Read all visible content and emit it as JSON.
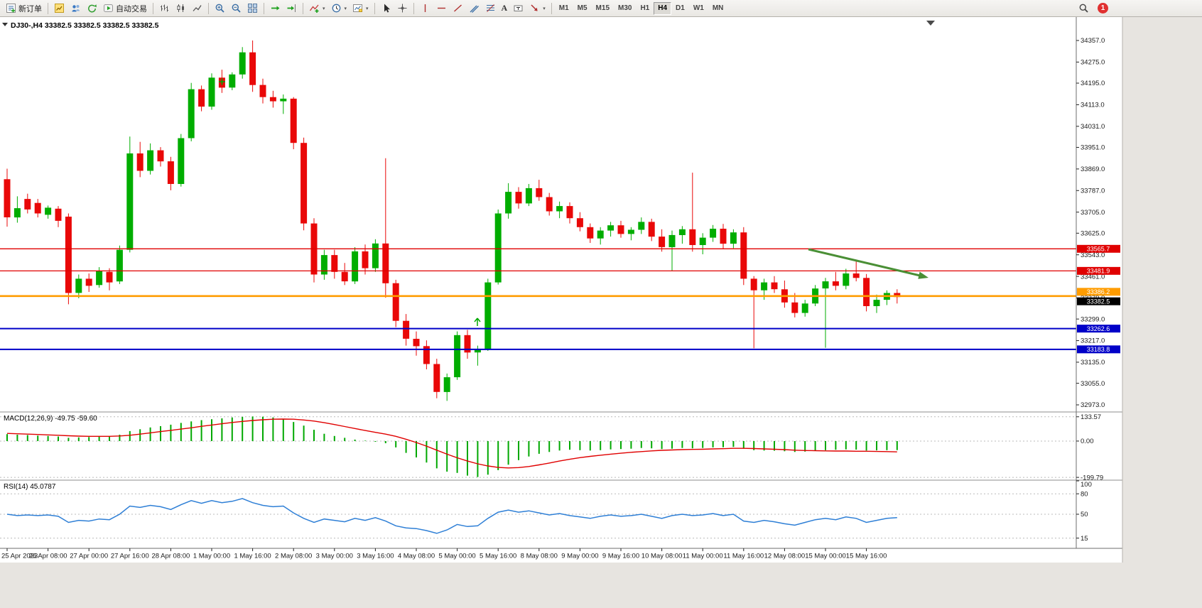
{
  "toolbar": {
    "new_order_label": "新订单",
    "auto_trading_label": "自动交易",
    "text_tool_label": "A",
    "timeframes": [
      "M1",
      "M5",
      "M15",
      "M30",
      "H1",
      "H4",
      "D1",
      "W1",
      "MN"
    ],
    "active_timeframe": "H4",
    "notification_count": "1"
  },
  "chart": {
    "title": "DJ30-,H4 33382.5 33382.5 33382.5 33382.5"
  },
  "chart_data": {
    "type": "candlestick",
    "symbol": "DJ30-",
    "timeframe": "H4",
    "current_ohlc": {
      "open": 33382.5,
      "high": 33382.5,
      "low": 33382.5,
      "close": 33382.5
    },
    "colors": {
      "bull": "#00ad00",
      "bear": "#e90808",
      "background": "#ffffff"
    },
    "price_axis": {
      "min": 32946,
      "max": 34446
    },
    "y_axis_labels": [
      "34357.0",
      "34275.0",
      "34195.0",
      "34113.0",
      "34031.0",
      "33951.0",
      "33869.0",
      "33787.0",
      "33705.0",
      "33625.0",
      "33543.0",
      "33461.0",
      "33379.0",
      "33299.0",
      "33217.0",
      "33135.0",
      "33055.0",
      "32973.0"
    ],
    "x_axis_labels": [
      "25 Apr 2023",
      "26 Apr 08:00",
      "27 Apr 00:00",
      "27 Apr 16:00",
      "28 Apr 08:00",
      "1 May 00:00",
      "1 May 16:00",
      "2 May 08:00",
      "3 May 00:00",
      "3 May 16:00",
      "4 May 08:00",
      "5 May 00:00",
      "5 May 16:00",
      "8 May 08:00",
      "9 May 00:00",
      "9 May 16:00",
      "10 May 08:00",
      "11 May 00:00",
      "11 May 16:00",
      "12 May 08:00",
      "15 May 00:00",
      "15 May 16:00"
    ],
    "bars_per_label": 4,
    "candles": [
      [
        33830,
        33870,
        33650,
        33685
      ],
      [
        33685,
        33765,
        33665,
        33720
      ],
      [
        33755,
        33775,
        33700,
        33715
      ],
      [
        33740,
        33755,
        33685,
        33700
      ],
      [
        33695,
        33730,
        33680,
        33722
      ],
      [
        33718,
        33728,
        33648,
        33672
      ],
      [
        33688,
        33700,
        33355,
        33398
      ],
      [
        33398,
        33468,
        33378,
        33452
      ],
      [
        33452,
        33472,
        33402,
        33425
      ],
      [
        33428,
        33496,
        33418,
        33482
      ],
      [
        33478,
        33492,
        33408,
        33438
      ],
      [
        33442,
        33578,
        33432,
        33562
      ],
      [
        33562,
        33992,
        33552,
        33928
      ],
      [
        33928,
        33972,
        33838,
        33862
      ],
      [
        33862,
        33966,
        33848,
        33940
      ],
      [
        33940,
        33952,
        33878,
        33898
      ],
      [
        33898,
        33915,
        33788,
        33812
      ],
      [
        33812,
        34002,
        33802,
        33986
      ],
      [
        33986,
        34196,
        33974,
        34172
      ],
      [
        34172,
        34186,
        34088,
        34106
      ],
      [
        34106,
        34232,
        34094,
        34216
      ],
      [
        34216,
        34246,
        34158,
        34178
      ],
      [
        34178,
        34236,
        34168,
        34228
      ],
      [
        34228,
        34332,
        34212,
        34312
      ],
      [
        34312,
        34357,
        34162,
        34188
      ],
      [
        34188,
        34212,
        34118,
        34142
      ],
      [
        34142,
        34166,
        34102,
        34126
      ],
      [
        34126,
        34152,
        34078,
        34136
      ],
      [
        34136,
        34142,
        33944,
        33968
      ],
      [
        33968,
        33988,
        33636,
        33662
      ],
      [
        33662,
        33682,
        33438,
        33468
      ],
      [
        33468,
        33562,
        33448,
        33542
      ],
      [
        33542,
        33562,
        33452,
        33478
      ],
      [
        33478,
        33512,
        33428,
        33442
      ],
      [
        33442,
        33572,
        33432,
        33556
      ],
      [
        33556,
        33582,
        33468,
        33492
      ],
      [
        33492,
        33602,
        33478,
        33586
      ],
      [
        33586,
        33910,
        33380,
        33435
      ],
      [
        33435,
        33448,
        33268,
        33292
      ],
      [
        33292,
        33318,
        33198,
        33224
      ],
      [
        33224,
        33252,
        33160,
        33196
      ],
      [
        33196,
        33218,
        33108,
        33128
      ],
      [
        33128,
        33148,
        32998,
        33022
      ],
      [
        33022,
        33092,
        32988,
        33078
      ],
      [
        33078,
        33252,
        33068,
        33238
      ],
      [
        33238,
        33258,
        33148,
        33172
      ],
      [
        33172,
        33198,
        33122,
        33186
      ],
      [
        33186,
        33452,
        33178,
        33438
      ],
      [
        33438,
        33715,
        33430,
        33700
      ],
      [
        33700,
        33815,
        33680,
        33782
      ],
      [
        33782,
        33800,
        33718,
        33738
      ],
      [
        33738,
        33812,
        33728,
        33796
      ],
      [
        33796,
        33828,
        33748,
        33762
      ],
      [
        33762,
        33778,
        33692,
        33708
      ],
      [
        33708,
        33745,
        33682,
        33728
      ],
      [
        33728,
        33742,
        33662,
        33682
      ],
      [
        33682,
        33705,
        33632,
        33648
      ],
      [
        33648,
        33662,
        33588,
        33605
      ],
      [
        33605,
        33648,
        33582,
        33635
      ],
      [
        33635,
        33668,
        33612,
        33655
      ],
      [
        33655,
        33672,
        33608,
        33622
      ],
      [
        33622,
        33648,
        33598,
        33638
      ],
      [
        33638,
        33685,
        33622,
        33668
      ],
      [
        33668,
        33680,
        33595,
        33612
      ],
      [
        33612,
        33640,
        33555,
        33572
      ],
      [
        33572,
        33635,
        33482,
        33618
      ],
      [
        33618,
        33652,
        33585,
        33640
      ],
      [
        33640,
        33855,
        33555,
        33580
      ],
      [
        33580,
        33625,
        33545,
        33608
      ],
      [
        33608,
        33656,
        33592,
        33642
      ],
      [
        33642,
        33660,
        33565,
        33585
      ],
      [
        33585,
        33640,
        33568,
        33628
      ],
      [
        33628,
        33648,
        33428,
        33452
      ],
      [
        33452,
        33462,
        33188,
        33408
      ],
      [
        33408,
        33452,
        33372,
        33438
      ],
      [
        33438,
        33462,
        33398,
        33412
      ],
      [
        33412,
        33445,
        33342,
        33362
      ],
      [
        33362,
        33398,
        33305,
        33322
      ],
      [
        33322,
        33372,
        33308,
        33358
      ],
      [
        33358,
        33428,
        33348,
        33415
      ],
      [
        33415,
        33455,
        33190,
        33442
      ],
      [
        33442,
        33478,
        33408,
        33425
      ],
      [
        33425,
        33490,
        33412,
        33472
      ],
      [
        33472,
        33518,
        33442,
        33455
      ],
      [
        33455,
        33470,
        33328,
        33348
      ],
      [
        33348,
        33392,
        33322,
        33372
      ],
      [
        33372,
        33408,
        33352,
        33398
      ],
      [
        33398,
        33412,
        33358,
        33382.5
      ]
    ],
    "hlines": [
      {
        "price": 33565.7,
        "label": "33565.7",
        "color": "#e00000",
        "width": 1.3,
        "tag_dy": 0
      },
      {
        "price": 33481.9,
        "label": "33481.9",
        "color": "#e00000",
        "width": 1.3,
        "tag_dy": 0
      },
      {
        "price": 33386.2,
        "label": "33386.2",
        "color": "#ff9c00",
        "width": 2.6,
        "tag_dy": -6
      },
      {
        "price": 33262.6,
        "label": "33262.6",
        "color": "#0000c8",
        "width": 2,
        "tag_dy": 0
      },
      {
        "price": 33183.8,
        "label": "33183.8",
        "color": "#0000c8",
        "width": 2,
        "tag_dy": 0
      }
    ],
    "current_price": {
      "value": 33382.5,
      "label": "33382.5",
      "color": "#000000",
      "tag_dy": 6
    },
    "macd": {
      "label": "MACD(12,26,9) -49.75 -59.60",
      "value": -49.75,
      "signal_value": -59.6,
      "axis_labels": [
        "133.57",
        "0.00",
        "-199.79"
      ],
      "range": {
        "min": -215,
        "max": 160
      },
      "histogram_color": "#00a800",
      "signal_color": "#e00000",
      "histogram": [
        38,
        35,
        33,
        30,
        28,
        25,
        18,
        20,
        22,
        26,
        27,
        35,
        55,
        65,
        75,
        82,
        90,
        100,
        108,
        115,
        120,
        125,
        130,
        133,
        135,
        134,
        130,
        120,
        105,
        85,
        62,
        40,
        28,
        18,
        8,
        2,
        -4,
        -12,
        -35,
        -65,
        -90,
        -118,
        -150,
        -168,
        -175,
        -190,
        -198,
        -185,
        -160,
        -130,
        -105,
        -85,
        -70,
        -60,
        -52,
        -48,
        -50,
        -52,
        -50,
        -46,
        -44,
        -42,
        -38,
        -40,
        -44,
        -42,
        -38,
        -40,
        -38,
        -35,
        -34,
        -32,
        -42,
        -50,
        -52,
        -53,
        -56,
        -60,
        -58,
        -54,
        -50,
        -48,
        -46,
        -47,
        -52,
        -51,
        -50,
        -49.75
      ],
      "signal": [
        42,
        40,
        38,
        36,
        34,
        32,
        29,
        27,
        26,
        26,
        26,
        28,
        32,
        38,
        45,
        52,
        59,
        66,
        73,
        81,
        88,
        95,
        102,
        108,
        113,
        117,
        120,
        121,
        120,
        116,
        110,
        101,
        91,
        80,
        69,
        58,
        48,
        38,
        26,
        10,
        -8,
        -28,
        -50,
        -72,
        -92,
        -110,
        -125,
        -137,
        -145,
        -148,
        -146,
        -140,
        -131,
        -121,
        -110,
        -100,
        -91,
        -84,
        -78,
        -72,
        -67,
        -62,
        -58,
        -54,
        -51,
        -49,
        -47,
        -46,
        -45,
        -43,
        -42,
        -40,
        -40,
        -41,
        -43,
        -45,
        -47,
        -50,
        -52,
        -53,
        -54,
        -55,
        -55,
        -56,
        -56,
        -57,
        -58,
        -59.6
      ]
    },
    "rsi": {
      "label": "RSI(14) 45.0787",
      "value": 45.0787,
      "axis_labels": [
        "100",
        "80",
        "50",
        "15"
      ],
      "levels": [
        80,
        50,
        15
      ],
      "range": {
        "min": 0,
        "max": 100
      },
      "line_color": "#2e7fd6",
      "values": [
        50,
        48,
        49,
        48,
        49,
        47,
        38,
        41,
        40,
        43,
        42,
        50,
        62,
        60,
        63,
        61,
        57,
        64,
        70,
        66,
        70,
        67,
        69,
        73,
        67,
        63,
        61,
        62,
        52,
        44,
        38,
        43,
        41,
        39,
        44,
        41,
        45,
        40,
        33,
        30,
        29,
        26,
        22,
        27,
        35,
        32,
        33,
        44,
        53,
        56,
        53,
        55,
        52,
        49,
        51,
        48,
        46,
        44,
        47,
        49,
        47,
        48,
        50,
        47,
        44,
        48,
        50,
        48,
        49,
        51,
        48,
        50,
        40,
        38,
        41,
        39,
        36,
        34,
        38,
        42,
        44,
        42,
        46,
        44,
        38,
        41,
        44,
        45.08
      ]
    },
    "annotations": {
      "trend_arrow": {
        "color": "#4a8f35",
        "direction": "down-right"
      },
      "plus_marker_color": "#00a800",
      "buy_arrow_color": "#00a800"
    }
  }
}
